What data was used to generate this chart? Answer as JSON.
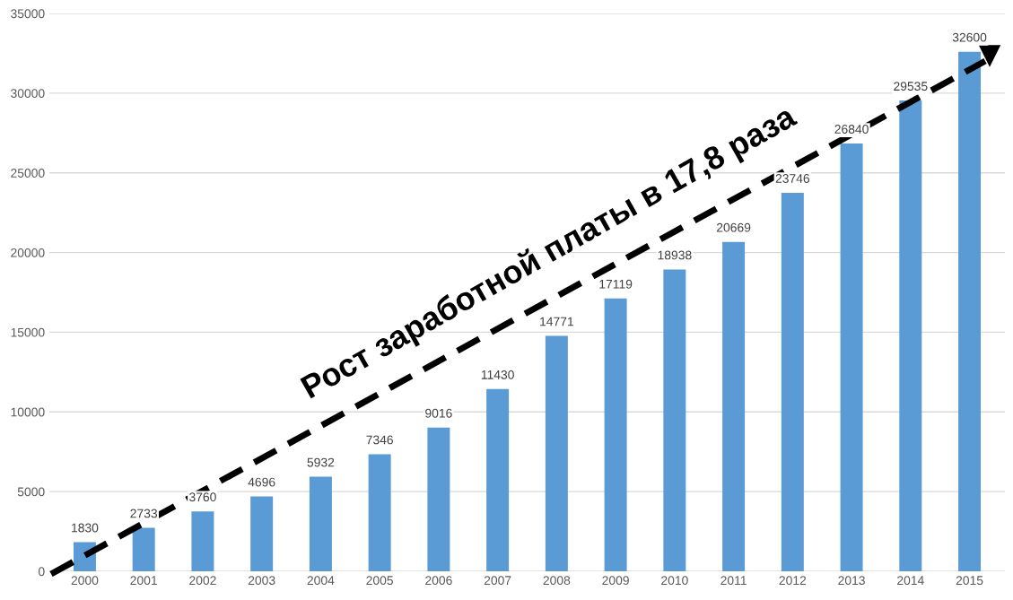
{
  "chart_data": {
    "type": "bar",
    "categories": [
      "2000",
      "2001",
      "2002",
      "2003",
      "2004",
      "2005",
      "2006",
      "2007",
      "2008",
      "2009",
      "2010",
      "2011",
      "2012",
      "2013",
      "2014",
      "2015"
    ],
    "values": [
      1830,
      2733,
      3760,
      4696,
      5932,
      7346,
      9016,
      11430,
      14771,
      17119,
      18938,
      20669,
      23746,
      26840,
      29535,
      32600
    ],
    "color": "#5b9bd5",
    "ylim": [
      0,
      35000
    ],
    "yticks": [
      0,
      5000,
      10000,
      15000,
      20000,
      25000,
      30000,
      35000
    ],
    "grid": "y",
    "data_labels": true,
    "legend": false,
    "annotations": [
      "Рост заработной платы в 17,8 раза"
    ]
  }
}
